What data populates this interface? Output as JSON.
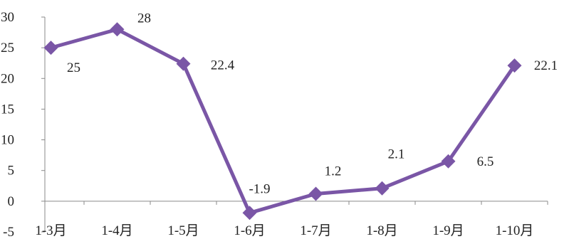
{
  "chart_data": {
    "type": "line",
    "title": "",
    "xlabel": "",
    "ylabel": "",
    "categories": [
      "1-3月",
      "1-4月",
      "1-5月",
      "1-6月",
      "1-7月",
      "1-8月",
      "1-9月",
      "1-10月"
    ],
    "series": [
      {
        "values": [
          25,
          28,
          22.4,
          -1.9,
          1.2,
          2.1,
          6.5,
          22.1
        ]
      }
    ],
    "data_labels": [
      "25",
      "28",
      "22.4",
      "-1.9",
      "1.2",
      "2.1",
      "6.5",
      "22.1"
    ],
    "y_ticks": [
      "-5",
      "0",
      "5",
      "10",
      "15",
      "20",
      "25",
      "30"
    ],
    "ylim": [
      -5,
      30
    ],
    "grid": false,
    "legend": "none",
    "marker": "diamond",
    "line_color": "#7a56a6",
    "axis_color": "#8a8a8a"
  }
}
